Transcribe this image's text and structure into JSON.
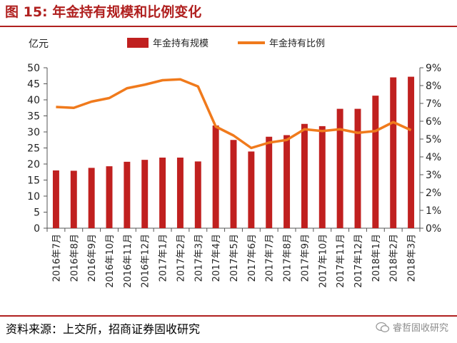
{
  "figure": {
    "title": "图 15:  年金持有规模和比例变化",
    "source": "资料来源：上交所，招商证券固收研究",
    "watermark": "睿哲固收研究"
  },
  "chart_data": {
    "type": "bar+line",
    "unit_label_left": "亿元",
    "categories": [
      "2016年7月",
      "2016年8月",
      "2016年9月",
      "2016年10月",
      "2016年11月",
      "2016年12月",
      "2017年1月",
      "2017年2月",
      "2017年3月",
      "2017年4月",
      "2017年5月",
      "2017年6月",
      "2017年7月",
      "2017年8月",
      "2017年9月",
      "2017年10月",
      "2017年11月",
      "2017年12月",
      "2018年1月",
      "2018年2月",
      "2018年3月"
    ],
    "series": [
      {
        "name": "年金持有规模",
        "type": "bar",
        "axis": "left",
        "color": "#c0201f",
        "values": [
          18.0,
          17.9,
          18.8,
          19.3,
          20.7,
          21.3,
          22.0,
          22.0,
          20.8,
          32.0,
          27.5,
          23.9,
          28.5,
          29.0,
          32.5,
          31.8,
          37.2,
          37.2,
          41.3,
          47.0,
          47.2
        ]
      },
      {
        "name": "年金持有比例",
        "type": "line",
        "axis": "right",
        "color": "#f07a1c",
        "values": [
          6.8,
          6.75,
          7.1,
          7.3,
          7.85,
          8.05,
          8.3,
          8.35,
          7.95,
          5.7,
          5.2,
          4.5,
          4.8,
          4.95,
          5.55,
          5.45,
          5.55,
          5.35,
          5.45,
          5.95,
          5.5
        ]
      }
    ],
    "y_left": {
      "min": 0,
      "max": 50,
      "step": 5,
      "ticks": [
        "0",
        "5",
        "10",
        "15",
        "20",
        "25",
        "30",
        "35",
        "40",
        "45",
        "50"
      ]
    },
    "y_right": {
      "min": 0,
      "max": 9,
      "step": 1,
      "ticks": [
        "0%",
        "1%",
        "2%",
        "3%",
        "4%",
        "5%",
        "6%",
        "7%",
        "8%",
        "9%"
      ]
    },
    "legend_position": "top",
    "grid": false
  }
}
